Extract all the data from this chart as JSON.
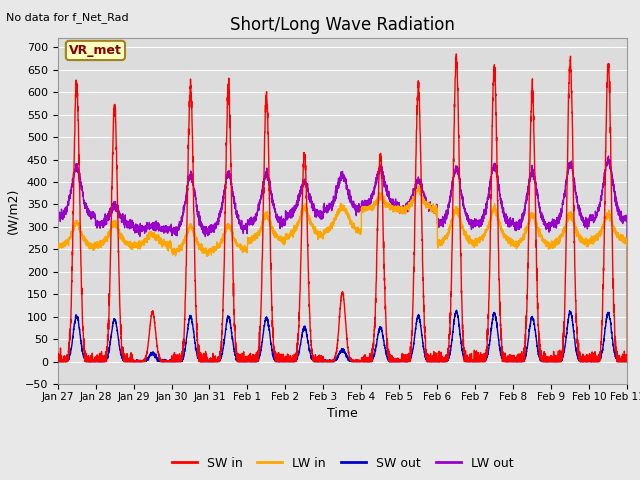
{
  "title": "Short/Long Wave Radiation",
  "subtitle": "No data for f_Net_Rad",
  "xlabel": "Time",
  "ylabel": "(W/m2)",
  "ylim": [
    -50,
    720
  ],
  "fig_bg": "#e8e8e8",
  "plot_bg": "#dcdcdc",
  "grid_color": "#ffffff",
  "legend_box_label": "VR_met",
  "legend_box_facecolor": "#ffffc0",
  "legend_box_edgecolor": "#a08020",
  "legend_box_text_color": "#8b0000",
  "series": {
    "SW_in": {
      "color": "#ff0000",
      "label": "SW in",
      "lw": 1.0
    },
    "LW_in": {
      "color": "#ffa500",
      "label": "LW in",
      "lw": 1.0
    },
    "SW_out": {
      "color": "#0000cc",
      "label": "SW out",
      "lw": 1.0
    },
    "LW_out": {
      "color": "#9900cc",
      "label": "LW out",
      "lw": 1.0
    }
  },
  "xtick_labels": [
    "Jan 27",
    "Jan 28",
    "Jan 29",
    "Jan 30",
    "Jan 31",
    "Feb 1",
    "Feb 2",
    "Feb 3",
    "Feb 4",
    "Feb 5",
    "Feb 6",
    "Feb 7",
    "Feb 8",
    "Feb 9",
    "Feb 10",
    "Feb 11"
  ],
  "num_days": 15,
  "pts_per_day": 288
}
